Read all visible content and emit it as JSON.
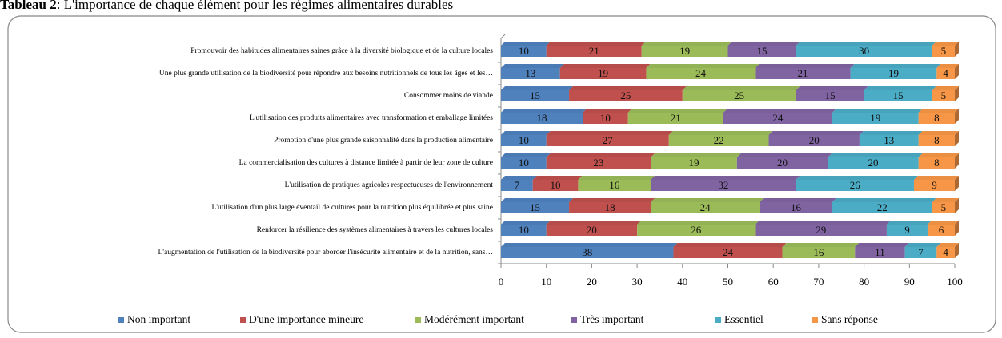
{
  "chart_data": {
    "type": "stacked-bar-horizontal",
    "caption": {
      "label": "Tableau 2",
      "text": ": L'importance de chaque élément pour les régimes alimentaires durables"
    },
    "categories": [
      "Promouvoir des habitudes alimentaires  saines grâce à la diversité biologique et de la culture locales",
      "Une plus grande utilisation de la biodiversité pour répondre  aux besoins nutritionnels de tous les âges et les…",
      "Consommer moins de viande",
      "L'utilisation des produits alimentaires  avec transformation  et emballage limitées",
      "Promotion d'une plus grande  saisonnalité  dans  la production  alimentaire",
      "La commercialisation  des cultures à distance  limitée à partir de leur zone de culture",
      "L'utilisation de pratiques agricoles respectueuses  de l'environnement",
      "L'utilisation d'un plus large éventail de cultures  pour la nutrition plus équilibrée  et plus saine",
      "Renforcer  la résilience  des  systèmes  alimentaires  à travers  les cultures  locales",
      "L'augmentation de l'utilisation de la biodiversité pour aborder  l'insécurité alimentaire  et de la nutrition, sans…"
    ],
    "series": [
      {
        "name": "Non important",
        "color": "#4f81bd",
        "values": [
          10,
          13,
          15,
          18,
          10,
          10,
          7,
          15,
          10,
          38
        ]
      },
      {
        "name": "D'une importance mineure",
        "color": "#c0504d",
        "values": [
          21,
          19,
          25,
          10,
          27,
          23,
          10,
          18,
          20,
          24
        ]
      },
      {
        "name": "Modérément important",
        "color": "#9bbb59",
        "values": [
          19,
          24,
          25,
          21,
          22,
          19,
          16,
          24,
          26,
          16
        ]
      },
      {
        "name": "Très important",
        "color": "#8064a2",
        "values": [
          15,
          21,
          15,
          24,
          20,
          20,
          32,
          16,
          29,
          11
        ]
      },
      {
        "name": "Essentiel",
        "color": "#4bacc6",
        "values": [
          30,
          19,
          15,
          19,
          13,
          20,
          26,
          22,
          9,
          7
        ]
      },
      {
        "name": "Sans réponse",
        "color": "#f79646",
        "values": [
          5,
          4,
          5,
          8,
          8,
          8,
          9,
          5,
          6,
          4
        ]
      }
    ],
    "xlim": [
      0,
      100
    ],
    "xticks": [
      0,
      10,
      20,
      30,
      40,
      50,
      60,
      70,
      80,
      90,
      100
    ],
    "legend": "bottom"
  }
}
